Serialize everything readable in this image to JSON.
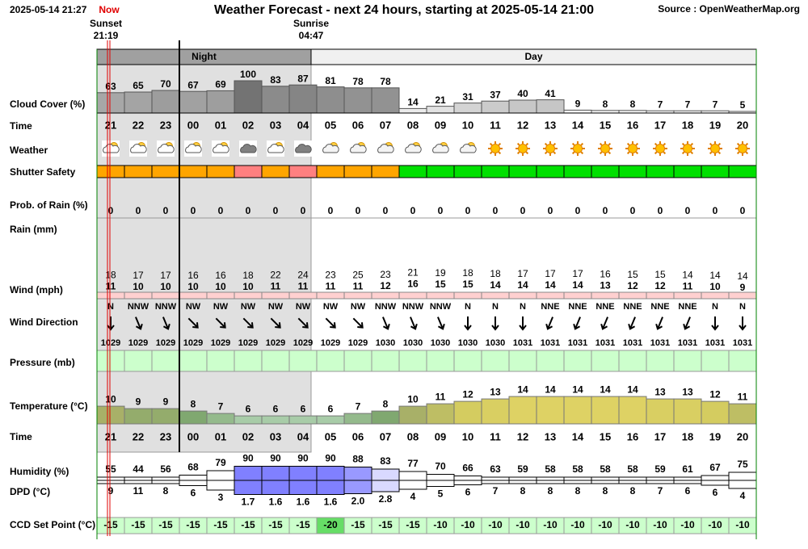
{
  "header": {
    "timestamp": "2025-05-14 21:27",
    "now_label": "Now",
    "title": "Weather Forecast - next 24 hours, starting at 2025-05-14 21:00",
    "source": "Source : OpenWeatherMap.org"
  },
  "sun": {
    "sunset_label": "Sunset",
    "sunset_time": "21:19",
    "sunrise_label": "Sunrise",
    "sunrise_time": "04:47"
  },
  "periods": {
    "night": "Night",
    "day": "Day"
  },
  "labels": {
    "cloud_cover": "Cloud Cover (%)",
    "time": "Time",
    "weather": "Weather",
    "shutter_safety": "Shutter Safety",
    "prob_rain": "Prob. of Rain (%)",
    "rain": "Rain (mm)",
    "wind": "Wind (mph)",
    "wind_direction": "Wind Direction",
    "pressure": "Pressure (mb)",
    "temperature": "Temperature (°C)",
    "humidity": "Humidity (%)",
    "dpd": "DPD (°C)",
    "ccd": "CCD Set Point (°C)"
  },
  "hours": [
    "21",
    "22",
    "23",
    "00",
    "01",
    "02",
    "03",
    "04",
    "05",
    "06",
    "07",
    "08",
    "09",
    "10",
    "11",
    "12",
    "13",
    "14",
    "15",
    "16",
    "17",
    "18",
    "19",
    "20"
  ],
  "cloud_cover": [
    63,
    65,
    70,
    67,
    69,
    100,
    83,
    87,
    81,
    78,
    78,
    14,
    21,
    31,
    37,
    40,
    41,
    9,
    8,
    8,
    7,
    7,
    7,
    5
  ],
  "shutter_safety": {
    "colors": [
      "#ffa500",
      "#ffa500",
      "#ffa500",
      "#ffa500",
      "#ffa500",
      "#ff8080",
      "#ffa500",
      "#ff8080",
      "#ffa500",
      "#ffa500",
      "#ffa500",
      "#00e000",
      "#00e000",
      "#00e000",
      "#00e000",
      "#00e000",
      "#00e000",
      "#00e000",
      "#00e000",
      "#00e000",
      "#00e000",
      "#00e000",
      "#00e000",
      "#00e000"
    ]
  },
  "prob_rain": [
    0,
    0,
    0,
    0,
    0,
    0,
    0,
    0,
    0,
    0,
    0,
    0,
    0,
    0,
    0,
    0,
    0,
    0,
    0,
    0,
    0,
    0,
    0,
    0
  ],
  "wind_gust": [
    18,
    17,
    17,
    16,
    16,
    18,
    22,
    24,
    23,
    25,
    23,
    21,
    19,
    18,
    18,
    17,
    17,
    17,
    16,
    15,
    15,
    14,
    14,
    14
  ],
  "wind_speed": [
    11,
    10,
    10,
    10,
    10,
    10,
    11,
    11,
    11,
    11,
    12,
    16,
    15,
    15,
    14,
    14,
    14,
    14,
    13,
    12,
    12,
    11,
    10,
    9
  ],
  "wind_direction": [
    "N",
    "NNW",
    "NNW",
    "NW",
    "NW",
    "NW",
    "NW",
    "NW",
    "NW",
    "NW",
    "NNW",
    "NNW",
    "NNW",
    "N",
    "N",
    "N",
    "NNE",
    "NNE",
    "NNE",
    "NNE",
    "NNE",
    "NNE",
    "N",
    "N"
  ],
  "pressure": [
    1029,
    1029,
    1029,
    1029,
    1029,
    1029,
    1029,
    1029,
    1029,
    1029,
    1030,
    1030,
    1030,
    1030,
    1030,
    1031,
    1031,
    1031,
    1031,
    1031,
    1031,
    1031,
    1031,
    1031
  ],
  "temperature": [
    10,
    9,
    9,
    8,
    7,
    6,
    6,
    6,
    6,
    7,
    8,
    10,
    11,
    12,
    13,
    14,
    14,
    14,
    14,
    14,
    13,
    13,
    12,
    11
  ],
  "humidity": [
    55,
    44,
    56,
    68,
    79,
    90,
    90,
    90,
    90,
    88,
    83,
    77,
    70,
    66,
    63,
    59,
    58,
    58,
    58,
    58,
    59,
    61,
    67,
    75
  ],
  "dpd": [
    9,
    11,
    8,
    6,
    3,
    1.7,
    1.6,
    1.6,
    1.6,
    {
      "value": 2,
      "label": "2.0"
    },
    2.8,
    4,
    5,
    6,
    7,
    8,
    8,
    8,
    8,
    8,
    7,
    6,
    6,
    4
  ],
  "ccd_set_point": [
    -15,
    -15,
    -15,
    -15,
    -15,
    -15,
    -15,
    -15,
    -20,
    -15,
    -15,
    -15,
    -10,
    -10,
    -10,
    -10,
    -10,
    -10,
    -10,
    -10,
    -10,
    -10,
    -10,
    -10
  ]
}
